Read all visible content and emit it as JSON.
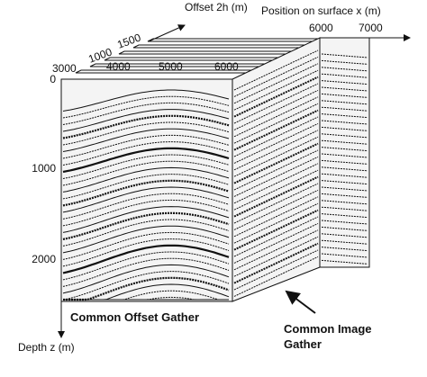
{
  "offset_axis": {
    "label": "Offset 2h (m)",
    "ticks": [
      "1000",
      "1500"
    ]
  },
  "position_axis": {
    "label": "Position on surface x (m)",
    "ticks": [
      "6000",
      "7000"
    ]
  },
  "front_axis": {
    "ticks": [
      "3000",
      "4000",
      "5000",
      "6000"
    ]
  },
  "depth_axis": {
    "label": "Depth z (m)",
    "ticks": [
      "0",
      "1000",
      "2000"
    ]
  },
  "annotations": {
    "offset_gather": "Common Offset Gather",
    "image_gather": [
      "Common Image",
      "Gather"
    ]
  }
}
